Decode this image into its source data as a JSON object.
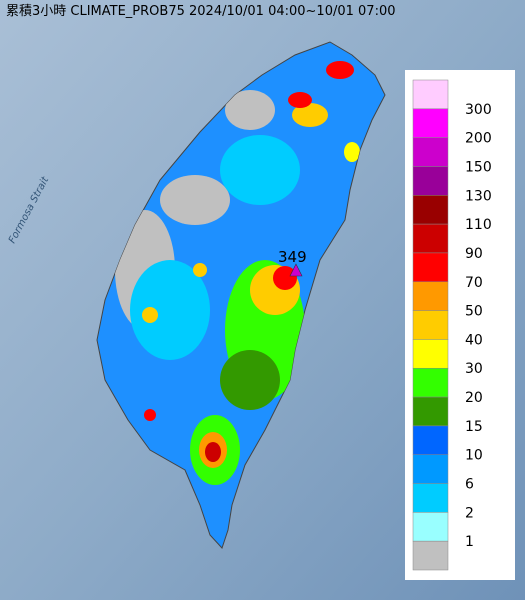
{
  "title": "累積3小時 CLIMATE_PROB75 2024/10/01 04:00~10/01 07:00",
  "map": {
    "sea_label": "Formosa Strait",
    "max_label": "349"
  },
  "legend": {
    "levels": [
      {
        "label": "300",
        "color": "#ffccff"
      },
      {
        "label": "200",
        "color": "#ff00ff"
      },
      {
        "label": "150",
        "color": "#cc00cc"
      },
      {
        "label": "130",
        "color": "#990099"
      },
      {
        "label": "110",
        "color": "#990000"
      },
      {
        "label": "90",
        "color": "#cc0000"
      },
      {
        "label": "70",
        "color": "#ff0000"
      },
      {
        "label": "50",
        "color": "#ff9900"
      },
      {
        "label": "40",
        "color": "#ffcc00"
      },
      {
        "label": "30",
        "color": "#ffff00"
      },
      {
        "label": "20",
        "color": "#33ff00"
      },
      {
        "label": "15",
        "color": "#339900"
      },
      {
        "label": "10",
        "color": "#0066ff"
      },
      {
        "label": "6",
        "color": "#0099ff"
      },
      {
        "label": "2",
        "color": "#00ccff"
      },
      {
        "label": "1",
        "color": "#99ffff"
      }
    ],
    "base_color": "#c0c0c0"
  }
}
